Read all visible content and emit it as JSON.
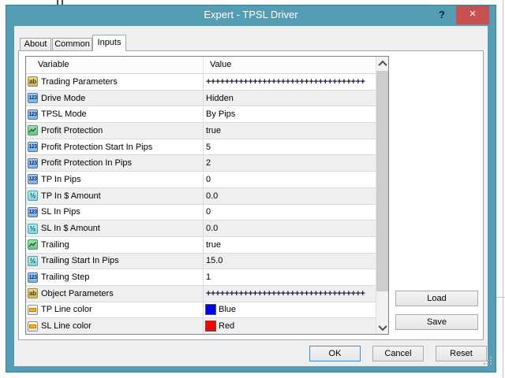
{
  "window": {
    "title": "Expert - TPSL Driver",
    "help_label": "?",
    "close_label": "×"
  },
  "tabs": [
    {
      "label": "About",
      "active": false
    },
    {
      "label": "Common",
      "active": false
    },
    {
      "label": "Inputs",
      "active": true
    }
  ],
  "table": {
    "columns": [
      "Variable",
      "Value"
    ],
    "rows": [
      {
        "icon": "string",
        "label": "Trading Parameters",
        "value": "++++++++++++++++++++++++++++++++++"
      },
      {
        "icon": "integer",
        "label": "Drive Mode",
        "value": "Hidden"
      },
      {
        "icon": "integer",
        "label": "TPSL Mode",
        "value": "By Pips"
      },
      {
        "icon": "bool",
        "label": "Profit Protection",
        "value": "true"
      },
      {
        "icon": "integer",
        "label": "Profit Protection Start In Pips",
        "value": "5"
      },
      {
        "icon": "integer",
        "label": "Profit Protection In Pips",
        "value": "2"
      },
      {
        "icon": "integer",
        "label": "TP In Pips",
        "value": "0"
      },
      {
        "icon": "double",
        "label": "TP In $ Amount",
        "value": "0.0"
      },
      {
        "icon": "integer",
        "label": "SL In Pips",
        "value": "0"
      },
      {
        "icon": "double",
        "label": "SL In $ Amount",
        "value": "0.0"
      },
      {
        "icon": "bool",
        "label": "Trailing",
        "value": "true"
      },
      {
        "icon": "double",
        "label": "Trailing Start In Pips",
        "value": "15.0"
      },
      {
        "icon": "integer",
        "label": "Trailing Step",
        "value": "1"
      },
      {
        "icon": "string",
        "label": "Object Parameters",
        "value": "++++++++++++++++++++++++++++++++++"
      },
      {
        "icon": "color",
        "label": "TP Line color",
        "value": "Blue",
        "swatch": "#0000ff"
      },
      {
        "icon": "color",
        "label": "SL Line color",
        "value": "Red",
        "swatch": "#ff0000"
      }
    ]
  },
  "buttons": {
    "load": "Load",
    "save": "Save",
    "ok": "OK",
    "cancel": "Cancel",
    "reset": "Reset"
  },
  "icon_glyphs": {
    "string": "ab",
    "integer": "123",
    "double": "½"
  },
  "colors": {
    "titlebar": "#539eb5",
    "close_button": "#c75050",
    "tp_line": "#0000ff",
    "sl_line": "#ff0000"
  }
}
